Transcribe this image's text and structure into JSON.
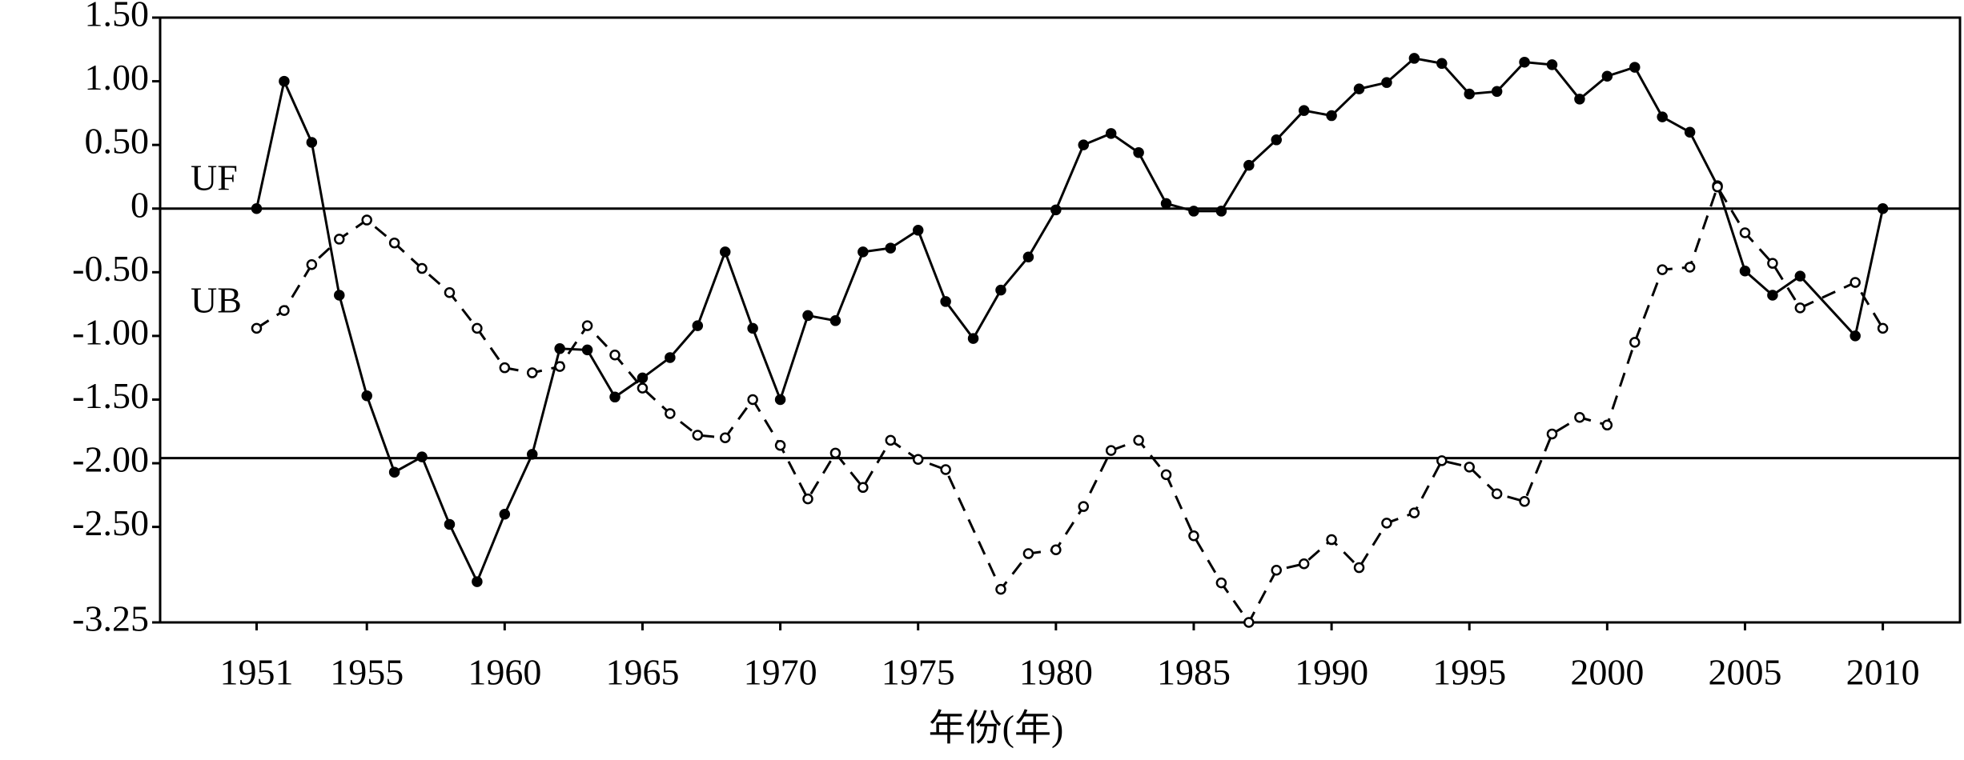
{
  "chart_data": {
    "type": "line",
    "xlabel": "年份(年)",
    "xlim": [
      1947.5,
      2012.8
    ],
    "xticks": [
      1951,
      1955,
      1960,
      1965,
      1970,
      1975,
      1980,
      1985,
      1990,
      1995,
      2000,
      2005,
      2010
    ],
    "ylim": [
      -3.25,
      1.5
    ],
    "yticks": [
      {
        "value": 1.5,
        "label": "1.50"
      },
      {
        "value": 1,
        "label": "1.00"
      },
      {
        "value": 0.5,
        "label": "0.50"
      },
      0,
      {
        "value": -0.5,
        "label": "-0.50"
      },
      {
        "value": -1,
        "label": "-1.00"
      },
      {
        "value": -1.5,
        "label": "-1.50"
      },
      {
        "value": -2,
        "label": "-2.00"
      },
      {
        "value": -2.5,
        "label": "-2.50"
      },
      -3.25
    ],
    "reference_lines": [
      0,
      -1.96
    ],
    "series": [
      {
        "name": "UF",
        "color": "#000000",
        "dash": false,
        "marker_fill": true,
        "x": [
          1951,
          1952,
          1953,
          1954,
          1955,
          1956,
          1957,
          1958,
          1959,
          1960,
          1961,
          1962,
          1963,
          1964,
          1965,
          1966,
          1967,
          1968,
          1969,
          1970,
          1971,
          1972,
          1973,
          1974,
          1975,
          1976,
          1977,
          1978,
          1979,
          1980,
          1981,
          1982,
          1983,
          1984,
          1985,
          1986,
          1987,
          1988,
          1989,
          1990,
          1991,
          1992,
          1993,
          1994,
          1995,
          1996,
          1997,
          1998,
          1999,
          2000,
          2001,
          2002,
          2003,
          2004,
          2005,
          2006,
          2007,
          2009,
          2010
        ],
        "values": [
          0,
          1.0,
          0.52,
          -0.68,
          -1.47,
          -2.07,
          -1.95,
          -2.48,
          -2.93,
          -2.4,
          -1.93,
          -1.1,
          -1.11,
          -1.48,
          -1.33,
          -1.17,
          -0.92,
          -0.34,
          -0.94,
          -1.5,
          -0.84,
          -0.88,
          -0.34,
          -0.31,
          -0.17,
          -0.73,
          -1.02,
          -0.64,
          -0.38,
          -0.01,
          0.5,
          0.59,
          0.44,
          0.04,
          -0.02,
          -0.02,
          0.34,
          0.54,
          0.77,
          0.73,
          0.94,
          0.99,
          1.18,
          1.14,
          0.9,
          0.92,
          1.15,
          1.13,
          0.86,
          1.04,
          1.11,
          0.72,
          0.6,
          0.18,
          -0.49,
          -0.68,
          -0.53,
          -1.0,
          0
        ]
      },
      {
        "name": "UB",
        "color": "#000000",
        "dash": true,
        "marker_fill": false,
        "x": [
          1951,
          1952,
          1953,
          1954,
          1955,
          1956,
          1957,
          1958,
          1959,
          1960,
          1961,
          1962,
          1963,
          1964,
          1965,
          1966,
          1967,
          1968,
          1969,
          1970,
          1971,
          1972,
          1973,
          1974,
          1975,
          1976,
          1978,
          1979,
          1980,
          1981,
          1982,
          1983,
          1984,
          1985,
          1986,
          1987,
          1988,
          1989,
          1990,
          1991,
          1992,
          1993,
          1994,
          1995,
          1996,
          1997,
          1998,
          1999,
          2000,
          2001,
          2002,
          2003,
          2004,
          2005,
          2006,
          2007,
          2009,
          2010
        ],
        "values": [
          -0.94,
          -0.8,
          -0.44,
          -0.24,
          -0.09,
          -0.27,
          -0.47,
          -0.66,
          -0.94,
          -1.25,
          -1.29,
          -1.24,
          -0.92,
          -1.15,
          -1.41,
          -1.61,
          -1.78,
          -1.8,
          -1.5,
          -1.86,
          -2.28,
          -1.92,
          -2.19,
          -1.82,
          -1.97,
          -2.05,
          -2.99,
          -2.71,
          -2.68,
          -2.34,
          -1.9,
          -1.82,
          -2.09,
          -2.57,
          -2.94,
          -3.25,
          -2.84,
          -2.79,
          -2.6,
          -2.82,
          -2.47,
          -2.39,
          -1.98,
          -2.03,
          -2.24,
          -2.3,
          -1.77,
          -1.64,
          -1.7,
          -1.05,
          -0.48,
          -0.46,
          0.17,
          -0.19,
          -0.43,
          -0.78,
          -0.58,
          -0.94
        ]
      }
    ]
  }
}
